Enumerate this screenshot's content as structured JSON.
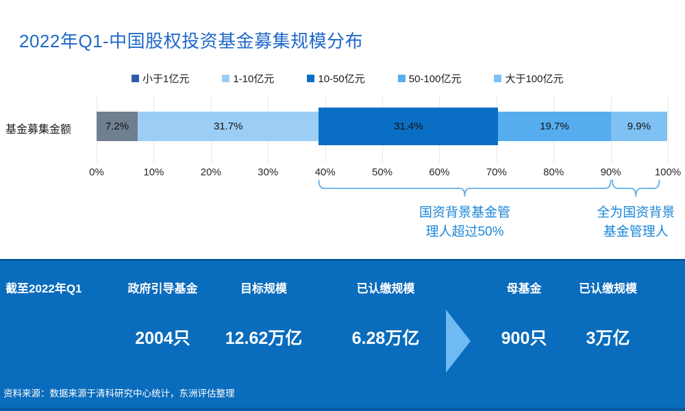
{
  "page": {
    "title": "2022年Q1-中国股权投资基金募集规模分布"
  },
  "chart_data": {
    "type": "bar",
    "variant": "horizontal_stacked_percent",
    "category_label": "基金募集金额",
    "series": [
      {
        "name": "小于1亿元",
        "value": 7.2,
        "label": "7.2%",
        "bar_color": "#6F7E90",
        "legend_color": "#2F5CA8",
        "emphasized": false
      },
      {
        "name": "1-10亿元",
        "value": 31.7,
        "label": "31.7%",
        "bar_color": "#9CCEF5",
        "legend_color": "#9CCEF5",
        "emphasized": false
      },
      {
        "name": "10-50亿元",
        "value": 31.4,
        "label": "31.4%",
        "bar_color": "#0A6FC4",
        "legend_color": "#0A6FC4",
        "emphasized": true
      },
      {
        "name": "50-100亿元",
        "value": 19.7,
        "label": "19.7%",
        "bar_color": "#55ADEF",
        "legend_color": "#55ADEF",
        "emphasized": false
      },
      {
        "name": "大于100亿元",
        "value": 9.9,
        "label": "9.9%",
        "bar_color": "#7EC1F2",
        "legend_color": "#7EC1F2",
        "emphasized": false
      }
    ],
    "x_ticks": [
      "0%",
      "10%",
      "20%",
      "30%",
      "40%",
      "50%",
      "60%",
      "70%",
      "80%",
      "90%",
      "100%"
    ],
    "xlim": [
      0,
      100
    ],
    "grid": true,
    "legend_position": "top",
    "annotations": [
      {
        "from_pct": 38.9,
        "to_pct": 90.0,
        "lines": [
          "国资背景基金管",
          "理人超过50%"
        ]
      },
      {
        "from_pct": 90.3,
        "to_pct": 98.5,
        "lines": [
          "全为国资背景",
          "基金管理人"
        ]
      }
    ]
  },
  "stats_band": {
    "as_of": "截至2022年Q1",
    "columns": [
      {
        "header": "政府引导基金",
        "value": "2004只"
      },
      {
        "header": "目标规模",
        "value": "12.62万亿"
      },
      {
        "header": "已认缴规模",
        "value": "6.28万亿"
      },
      {
        "header": "母基金",
        "value": "900只"
      },
      {
        "header": "已认缴规模",
        "value": "3万亿"
      }
    ],
    "arrow_between": [
      2,
      3
    ]
  },
  "footer": {
    "source": "资料来源：数据来源于清科研究中心统计，东洲评估整理"
  },
  "colors": {
    "title": "#1E68C8",
    "annotation_text": "#1D87D8",
    "brace": "#5FAEE9",
    "band_bg": "#0A6CBC",
    "arrow": "#6FBAF3",
    "grid": "#E7E7E7",
    "label_text": "#1A1A1A"
  }
}
